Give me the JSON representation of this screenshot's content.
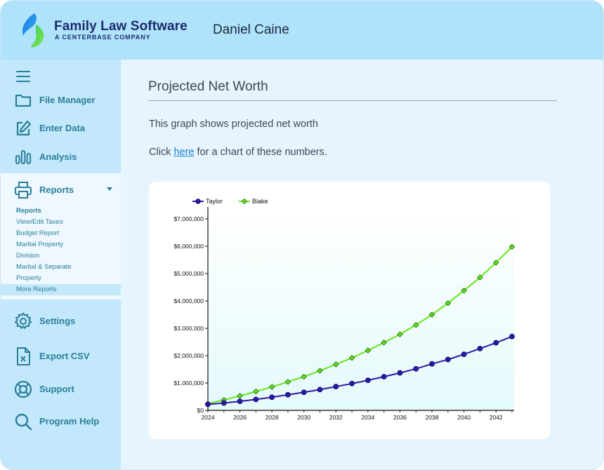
{
  "header": {
    "brand_title": "Family Law Software",
    "brand_subtitle": "A CENTERBASE COMPANY",
    "user_name": "Daniel Caine"
  },
  "sidebar": {
    "items": [
      {
        "label": "File Manager",
        "icon": "folder-icon"
      },
      {
        "label": "Enter Data",
        "icon": "edit-icon"
      },
      {
        "label": "Analysis",
        "icon": "bar-chart-icon"
      },
      {
        "label": "Reports",
        "icon": "printer-icon"
      },
      {
        "label": "Settings",
        "icon": "gear-icon"
      },
      {
        "label": "Export CSV",
        "icon": "csv-file-icon"
      },
      {
        "label": "Support",
        "icon": "lifebuoy-icon"
      },
      {
        "label": "Program Help",
        "icon": "magnifier-icon"
      }
    ],
    "reports_submenu": [
      "Reports",
      "View/Edit Taxes",
      "Budget Report",
      "Marital Property",
      "Division",
      "Marital & Separate",
      "Property",
      "More Reports"
    ]
  },
  "main": {
    "title": "Projected Net Worth",
    "description": "This graph shows projected net worth",
    "click_prefix": "Click ",
    "click_link": "here",
    "click_suffix": " for a chart of these numbers."
  },
  "colors": {
    "accent": "#2a7f9a",
    "header_bg": "#aee3fb",
    "sidebar_bg": "#c3e8fb",
    "taylor": "#2a1aa8",
    "blake": "#66e619"
  },
  "chart_data": {
    "type": "line",
    "title": "",
    "xlabel": "",
    "ylabel": "",
    "x": [
      2024,
      2025,
      2026,
      2027,
      2028,
      2029,
      2030,
      2031,
      2032,
      2033,
      2034,
      2035,
      2036,
      2037,
      2038,
      2039,
      2040,
      2041,
      2042,
      2043
    ],
    "xticks": [
      "2024",
      "2026",
      "2028",
      "2030",
      "2032",
      "2034",
      "2036",
      "2038",
      "2040",
      "2042"
    ],
    "yticks": [
      "$0",
      "$1,000,000",
      "$2,000,000",
      "$3,000,000",
      "$4,000,000",
      "$5,000,000",
      "$6,000,000",
      "$7,000,000"
    ],
    "ylim": [
      0,
      7000000
    ],
    "legend_position": "top-left",
    "series": [
      {
        "name": "Taylor",
        "color": "#2a1aa8",
        "marker": "circle",
        "values": [
          220000,
          270000,
          330000,
          400000,
          480000,
          570000,
          660000,
          760000,
          870000,
          980000,
          1100000,
          1230000,
          1370000,
          1520000,
          1700000,
          1860000,
          2050000,
          2260000,
          2470000,
          2700000
        ]
      },
      {
        "name": "Blake",
        "color": "#66e619",
        "marker": "diamond",
        "values": [
          250000,
          380000,
          530000,
          690000,
          860000,
          1040000,
          1230000,
          1450000,
          1680000,
          1920000,
          2190000,
          2480000,
          2780000,
          3120000,
          3500000,
          3920000,
          4380000,
          4860000,
          5400000,
          5980000
        ]
      }
    ]
  }
}
